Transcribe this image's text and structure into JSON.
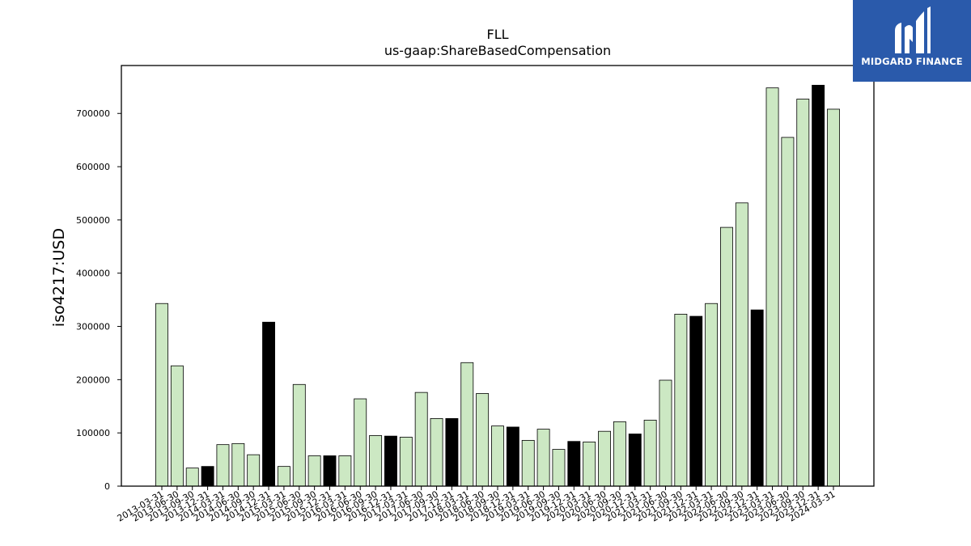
{
  "brand": {
    "name": "MIDGARD FINANCE",
    "icon": "mf-logo-icon",
    "bg_color": "#2a5aab"
  },
  "chart_data": {
    "type": "bar",
    "title": "FLL",
    "subtitle": "us-gaap:ShareBasedCompensation",
    "xlabel": "",
    "ylabel": "iso4217:USD",
    "ylim": [
      0,
      790000
    ],
    "yticks": [
      0,
      100000,
      200000,
      300000,
      400000,
      500000,
      600000,
      700000
    ],
    "ytick_labels": [
      "0",
      "100000",
      "200000",
      "300000",
      "400000",
      "500000",
      "600000",
      "700000"
    ],
    "grid": false,
    "legend": "none",
    "colors": {
      "light": "#cce8c3",
      "dark": "#000000",
      "edge": "#000000"
    },
    "categories": [
      "2013-03-31",
      "2013-06-30",
      "2013-09-30",
      "2013-12-31",
      "2014-03-31",
      "2014-06-30",
      "2014-09-30",
      "2014-12-31",
      "2015-03-31",
      "2015-06-30",
      "2015-09-30",
      "2015-12-31",
      "2016-03-31",
      "2016-06-30",
      "2016-09-30",
      "2016-12-31",
      "2017-03-31",
      "2017-06-30",
      "2017-09-30",
      "2017-12-31",
      "2018-03-31",
      "2018-06-30",
      "2018-09-30",
      "2018-12-31",
      "2019-03-31",
      "2019-06-30",
      "2019-09-30",
      "2019-12-31",
      "2020-03-31",
      "2020-06-30",
      "2020-09-30",
      "2020-12-31",
      "2021-03-31",
      "2021-06-30",
      "2021-09-30",
      "2021-12-31",
      "2022-03-31",
      "2022-06-30",
      "2022-09-30",
      "2022-12-31",
      "2023-03-31",
      "2023-06-30",
      "2023-09-30",
      "2023-12-31",
      "2024-03-31"
    ],
    "values": [
      343000,
      226000,
      34000,
      37000,
      78000,
      80000,
      59000,
      308000,
      37000,
      191000,
      57000,
      57000,
      57000,
      164000,
      95000,
      94000,
      92000,
      176000,
      127000,
      127000,
      232000,
      174000,
      113000,
      111000,
      86000,
      107000,
      69000,
      84000,
      83000,
      103000,
      121000,
      98000,
      124000,
      199000,
      323000,
      319000,
      343000,
      486000,
      532000,
      331000,
      748000,
      655000,
      727000,
      753000,
      708000
    ],
    "highlight": [
      false,
      false,
      false,
      true,
      false,
      false,
      false,
      true,
      false,
      false,
      false,
      true,
      false,
      false,
      false,
      true,
      false,
      false,
      false,
      true,
      false,
      false,
      false,
      true,
      false,
      false,
      false,
      true,
      false,
      false,
      false,
      true,
      false,
      false,
      false,
      true,
      false,
      false,
      false,
      true,
      false,
      false,
      false,
      true,
      false
    ]
  }
}
